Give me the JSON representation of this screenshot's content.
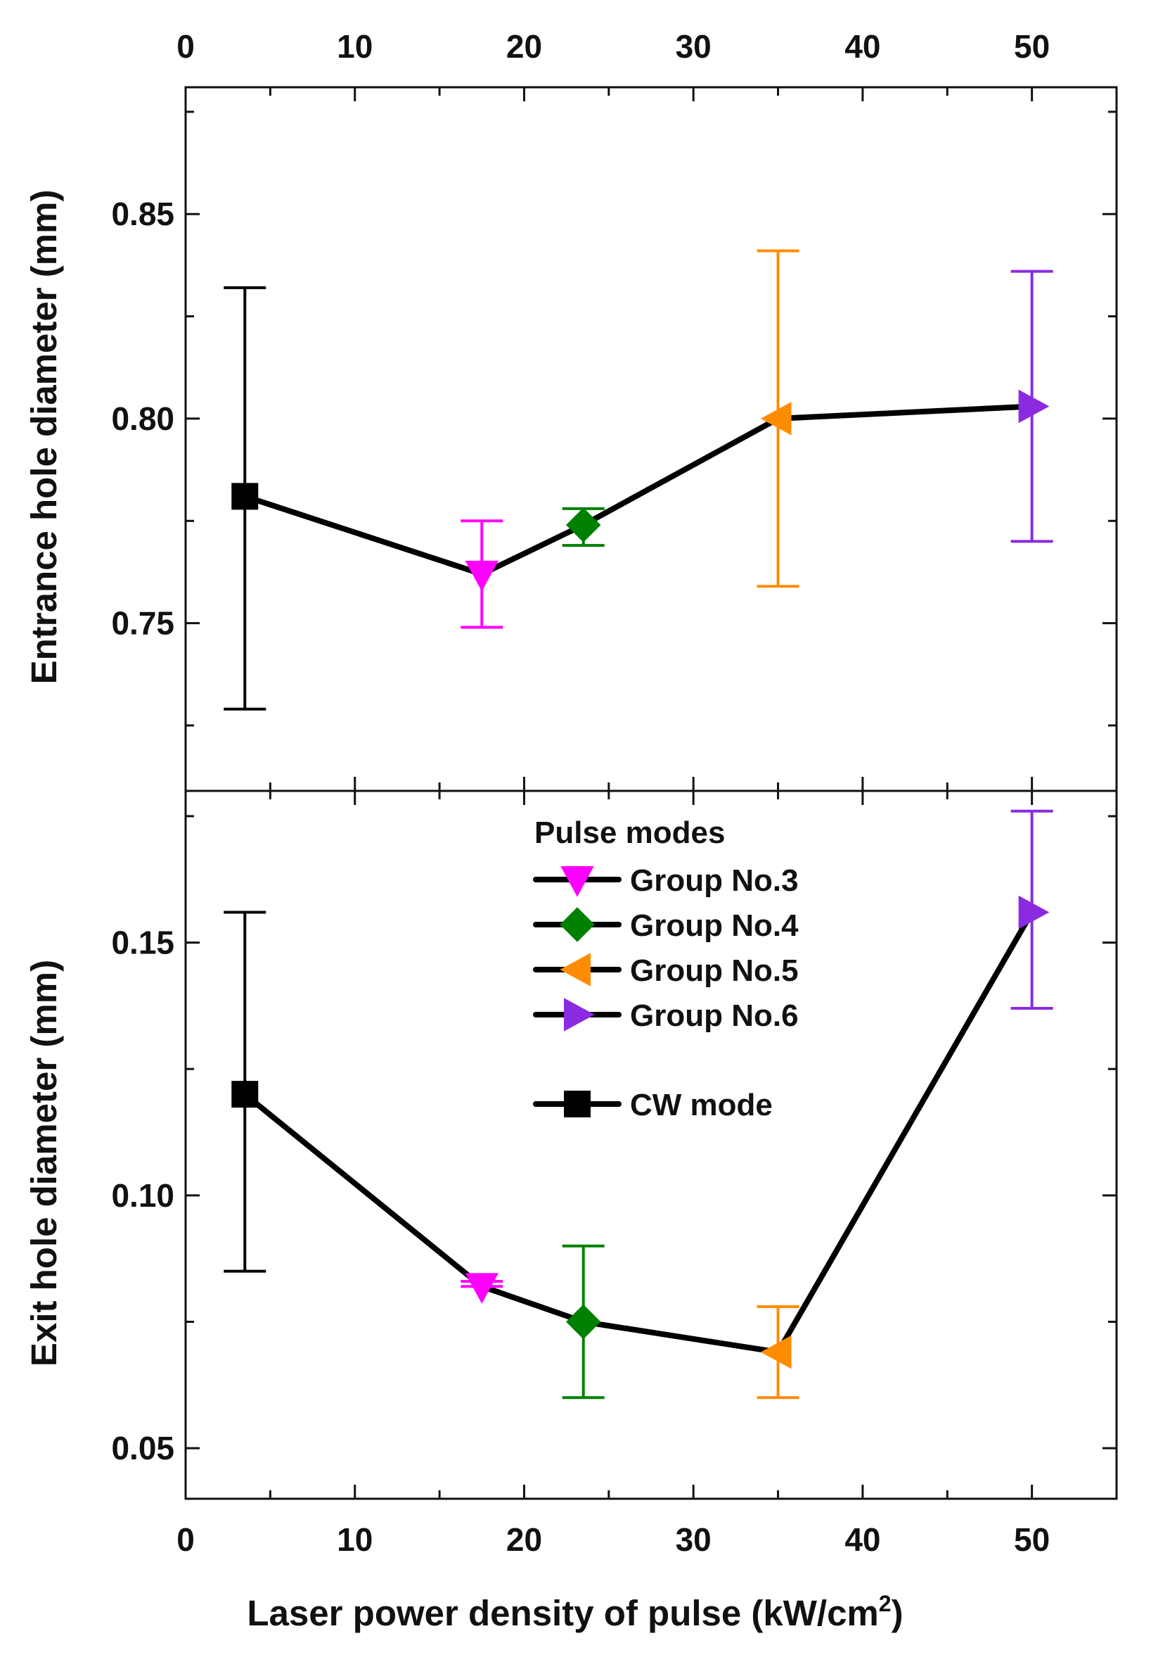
{
  "chart_data": {
    "type": "scatter",
    "xlabel": "Laser power density of pulse (kW/cm",
    "xlabel_sup": "2",
    "xlabel_close": ")",
    "xlim": [
      0,
      55
    ],
    "xticks": [
      0,
      10,
      20,
      30,
      40,
      50
    ],
    "xtick_labels": [
      "0",
      "10",
      "20",
      "30",
      "40",
      "50"
    ],
    "legend": {
      "title": "Pulse modes",
      "placement": "top-center of lower panel",
      "entries": [
        {
          "label": "Group No.3",
          "marker": "triangle-down",
          "color": "#ff00ff"
        },
        {
          "label": "Group No.4",
          "marker": "diamond",
          "color": "#008000"
        },
        {
          "label": "Group No.5",
          "marker": "triangle-left",
          "color": "#ff8c00"
        },
        {
          "label": "Group No.6",
          "marker": "triangle-right",
          "color": "#8a2be2"
        },
        {
          "label": "CW mode",
          "marker": "square",
          "color": "#000000"
        }
      ]
    },
    "panels": [
      {
        "id": "entrance",
        "ylabel": "Entrance hole diameter (mm)",
        "ylim": [
          0.709,
          0.881
        ],
        "yticks": [
          0.75,
          0.8,
          0.85
        ],
        "ytick_labels": [
          "0.75",
          "0.80",
          "0.85"
        ],
        "points": [
          {
            "series": "CW mode",
            "x": 3.5,
            "y": 0.781,
            "err_low": 0.729,
            "err_high": 0.832,
            "marker": "square",
            "color": "#000000"
          },
          {
            "series": "Group No.3",
            "x": 17.5,
            "y": 0.762,
            "err_low": 0.749,
            "err_high": 0.775,
            "marker": "triangle-down",
            "color": "#ff00ff"
          },
          {
            "series": "Group No.4",
            "x": 23.5,
            "y": 0.774,
            "err_low": 0.769,
            "err_high": 0.778,
            "marker": "diamond",
            "color": "#008000"
          },
          {
            "series": "Group No.5",
            "x": 35,
            "y": 0.8,
            "err_low": 0.759,
            "err_high": 0.841,
            "marker": "triangle-left",
            "color": "#ff8c00"
          },
          {
            "series": "Group No.6",
            "x": 50,
            "y": 0.803,
            "err_low": 0.77,
            "err_high": 0.836,
            "marker": "triangle-right",
            "color": "#8a2be2"
          }
        ]
      },
      {
        "id": "exit",
        "ylabel": "Exit hole diameter (mm)",
        "ylim": [
          0.04,
          0.18
        ],
        "yticks": [
          0.05,
          0.1,
          0.15
        ],
        "ytick_labels": [
          "0.05",
          "0.10",
          "0.15"
        ],
        "points": [
          {
            "series": "CW mode",
            "x": 3.5,
            "y": 0.12,
            "err_low": 0.085,
            "err_high": 0.156,
            "marker": "square",
            "color": "#000000"
          },
          {
            "series": "Group No.3",
            "x": 17.5,
            "y": 0.082,
            "err_low": 0.082,
            "err_high": 0.083,
            "marker": "triangle-down",
            "color": "#ff00ff"
          },
          {
            "series": "Group No.4",
            "x": 23.5,
            "y": 0.075,
            "err_low": 0.06,
            "err_high": 0.09,
            "marker": "diamond",
            "color": "#008000"
          },
          {
            "series": "Group No.5",
            "x": 35,
            "y": 0.069,
            "err_low": 0.06,
            "err_high": 0.078,
            "marker": "triangle-left",
            "color": "#ff8c00"
          },
          {
            "series": "Group No.6",
            "x": 50,
            "y": 0.156,
            "err_low": 0.137,
            "err_high": 0.176,
            "marker": "triangle-right",
            "color": "#8a2be2"
          }
        ]
      }
    ]
  }
}
